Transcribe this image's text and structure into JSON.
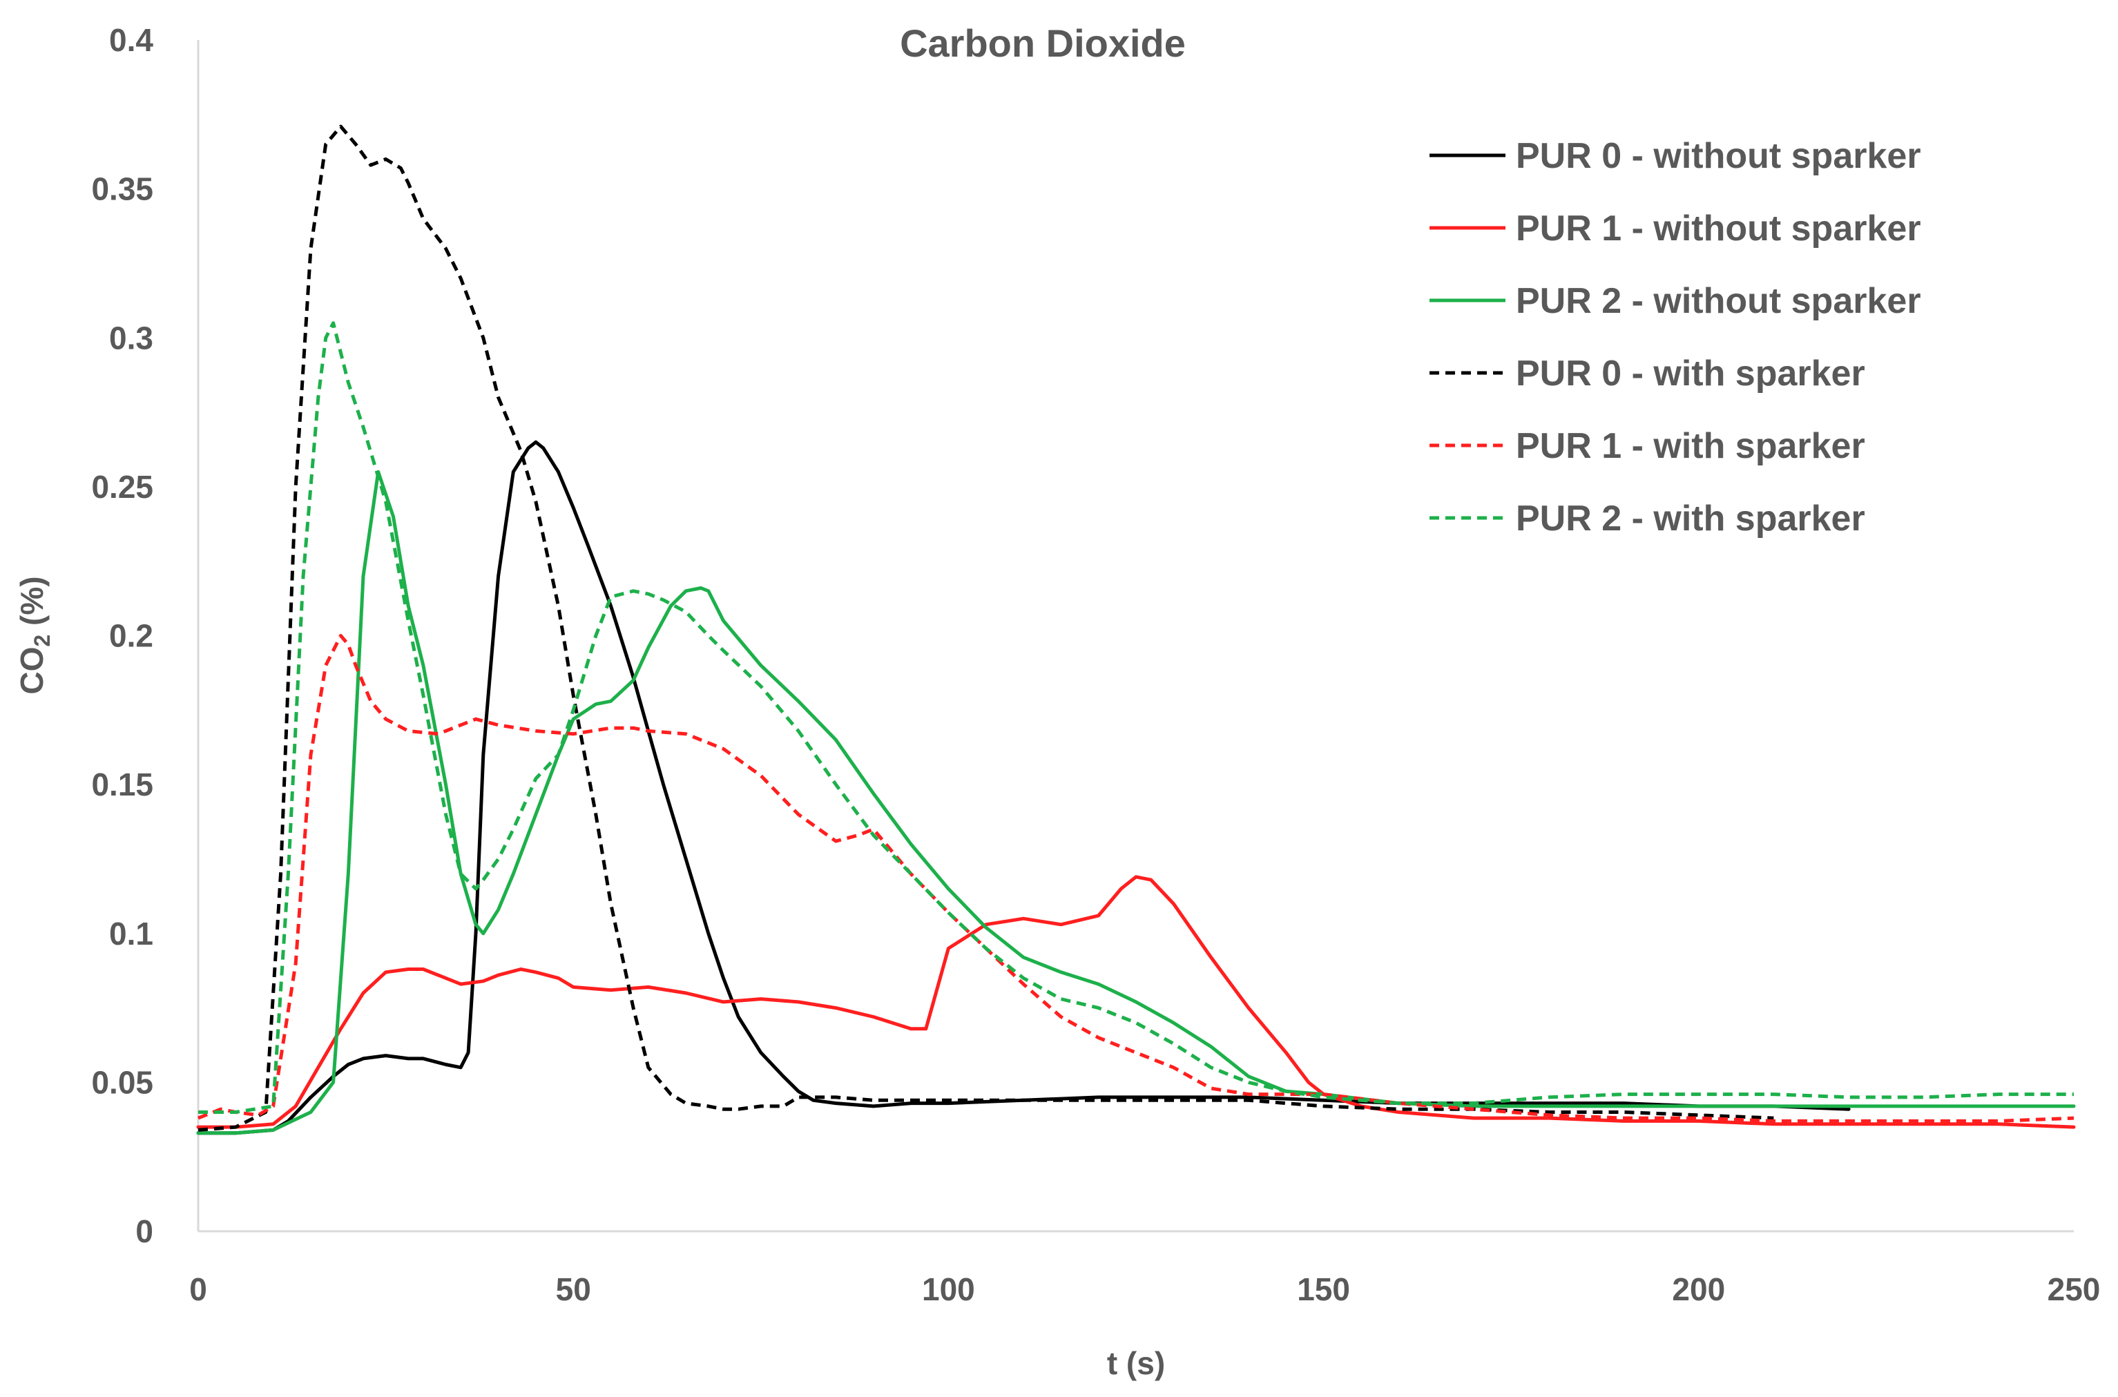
{
  "chart_data": {
    "type": "line",
    "title": "Carbon Dioxide",
    "xlabel": "t (s)",
    "ylabel": {
      "prefix": "CO",
      "subscript": "2",
      "suffix": " (%)"
    },
    "xlim": [
      0,
      250
    ],
    "ylim": [
      0,
      0.4
    ],
    "xticks": [
      0,
      50,
      100,
      150,
      200,
      250
    ],
    "xtick_labels": [
      "0",
      "50",
      "100",
      "150",
      "200",
      "250"
    ],
    "yticks": [
      0,
      0.05,
      0.1,
      0.15,
      0.2,
      0.25,
      0.3,
      0.35,
      0.4
    ],
    "ytick_labels": [
      "0",
      "0.05",
      "0.1",
      "0.15",
      "0.2",
      "0.25",
      "0.3",
      "0.35",
      "0.4"
    ],
    "grid": false,
    "legend_position": "top-right",
    "series": [
      {
        "name": "PUR 0 - without sparker",
        "color": "#000000",
        "dashed": false,
        "x": [
          0,
          5,
          10,
          12,
          15,
          18,
          20,
          22,
          25,
          28,
          30,
          33,
          35,
          36,
          37,
          38,
          40,
          42,
          44,
          45,
          46,
          48,
          50,
          52,
          55,
          58,
          60,
          62,
          65,
          68,
          70,
          72,
          75,
          78,
          80,
          82,
          85,
          90,
          95,
          100,
          110,
          120,
          130,
          140,
          150,
          160,
          170,
          180,
          190,
          200,
          210,
          220
        ],
        "y": [
          0.033,
          0.033,
          0.034,
          0.037,
          0.045,
          0.052,
          0.056,
          0.058,
          0.059,
          0.058,
          0.058,
          0.056,
          0.055,
          0.06,
          0.1,
          0.16,
          0.22,
          0.255,
          0.263,
          0.265,
          0.263,
          0.255,
          0.243,
          0.23,
          0.21,
          0.186,
          0.168,
          0.15,
          0.125,
          0.1,
          0.085,
          0.072,
          0.06,
          0.052,
          0.047,
          0.044,
          0.043,
          0.042,
          0.043,
          0.043,
          0.044,
          0.045,
          0.045,
          0.045,
          0.044,
          0.043,
          0.043,
          0.043,
          0.043,
          0.042,
          0.042,
          0.041
        ]
      },
      {
        "name": "PUR 1 - without sparker",
        "color": "#FF1F1F",
        "dashed": false,
        "x": [
          0,
          5,
          10,
          13,
          16,
          19,
          22,
          25,
          28,
          30,
          33,
          35,
          38,
          40,
          43,
          45,
          48,
          50,
          55,
          60,
          65,
          70,
          75,
          80,
          85,
          90,
          95,
          97,
          100,
          105,
          110,
          115,
          120,
          123,
          125,
          127,
          130,
          135,
          140,
          145,
          148,
          150,
          155,
          160,
          170,
          180,
          190,
          200,
          210,
          220,
          230,
          240,
          250
        ],
        "y": [
          0.035,
          0.035,
          0.036,
          0.042,
          0.055,
          0.068,
          0.08,
          0.087,
          0.088,
          0.088,
          0.085,
          0.083,
          0.084,
          0.086,
          0.088,
          0.087,
          0.085,
          0.082,
          0.081,
          0.082,
          0.08,
          0.077,
          0.078,
          0.077,
          0.075,
          0.072,
          0.068,
          0.068,
          0.095,
          0.103,
          0.105,
          0.103,
          0.106,
          0.115,
          0.119,
          0.118,
          0.11,
          0.092,
          0.075,
          0.06,
          0.05,
          0.046,
          0.042,
          0.04,
          0.038,
          0.038,
          0.037,
          0.037,
          0.036,
          0.036,
          0.036,
          0.036,
          0.035
        ]
      },
      {
        "name": "PUR 2 - without sparker",
        "color": "#1DB04B",
        "dashed": false,
        "x": [
          0,
          5,
          10,
          15,
          18,
          20,
          22,
          24,
          26,
          28,
          30,
          33,
          35,
          37,
          38,
          40,
          42,
          45,
          48,
          50,
          53,
          55,
          58,
          60,
          63,
          65,
          67,
          68,
          70,
          75,
          80,
          85,
          90,
          95,
          100,
          105,
          110,
          115,
          120,
          125,
          130,
          135,
          140,
          145,
          150,
          160,
          170,
          180,
          190,
          200,
          210,
          220,
          230,
          240,
          250
        ],
        "y": [
          0.033,
          0.033,
          0.034,
          0.04,
          0.05,
          0.12,
          0.22,
          0.255,
          0.24,
          0.21,
          0.19,
          0.15,
          0.12,
          0.103,
          0.1,
          0.108,
          0.12,
          0.14,
          0.16,
          0.172,
          0.177,
          0.178,
          0.185,
          0.196,
          0.21,
          0.215,
          0.216,
          0.215,
          0.205,
          0.19,
          0.178,
          0.165,
          0.147,
          0.13,
          0.115,
          0.102,
          0.092,
          0.087,
          0.083,
          0.077,
          0.07,
          0.062,
          0.052,
          0.047,
          0.046,
          0.043,
          0.042,
          0.042,
          0.042,
          0.042,
          0.042,
          0.042,
          0.042,
          0.042,
          0.042
        ]
      },
      {
        "name": "PUR 0 - with sparker",
        "color": "#000000",
        "dashed": true,
        "x": [
          0,
          5,
          9,
          11,
          13,
          15,
          17,
          19,
          21,
          23,
          25,
          27,
          28,
          30,
          33,
          35,
          38,
          40,
          43,
          45,
          48,
          50,
          53,
          55,
          58,
          60,
          63,
          65,
          68,
          70,
          72,
          75,
          78,
          80,
          85,
          90,
          100,
          110,
          120,
          130,
          140,
          150,
          160,
          170,
          180,
          190,
          200,
          210
        ],
        "y": [
          0.034,
          0.035,
          0.04,
          0.12,
          0.25,
          0.33,
          0.365,
          0.371,
          0.365,
          0.358,
          0.36,
          0.357,
          0.352,
          0.34,
          0.33,
          0.32,
          0.3,
          0.28,
          0.262,
          0.245,
          0.21,
          0.18,
          0.14,
          0.11,
          0.075,
          0.055,
          0.046,
          0.043,
          0.042,
          0.041,
          0.041,
          0.042,
          0.042,
          0.045,
          0.045,
          0.044,
          0.044,
          0.044,
          0.044,
          0.044,
          0.044,
          0.042,
          0.041,
          0.041,
          0.04,
          0.04,
          0.039,
          0.038
        ]
      },
      {
        "name": "PUR 1 - with sparker",
        "color": "#FF1F1F",
        "dashed": true,
        "x": [
          0,
          3,
          5,
          8,
          10,
          13,
          15,
          17,
          19,
          20,
          21,
          23,
          25,
          28,
          32,
          35,
          37,
          40,
          45,
          50,
          55,
          58,
          60,
          65,
          70,
          75,
          80,
          85,
          88,
          90,
          95,
          100,
          105,
          110,
          115,
          120,
          125,
          130,
          135,
          140,
          145,
          150,
          160,
          170,
          180,
          190,
          200,
          210,
          220,
          230,
          240,
          250
        ],
        "y": [
          0.038,
          0.041,
          0.04,
          0.039,
          0.042,
          0.09,
          0.16,
          0.19,
          0.2,
          0.197,
          0.19,
          0.178,
          0.172,
          0.168,
          0.167,
          0.17,
          0.172,
          0.17,
          0.168,
          0.167,
          0.169,
          0.169,
          0.168,
          0.167,
          0.162,
          0.153,
          0.14,
          0.131,
          0.133,
          0.135,
          0.12,
          0.107,
          0.095,
          0.083,
          0.072,
          0.065,
          0.06,
          0.055,
          0.048,
          0.046,
          0.046,
          0.046,
          0.043,
          0.041,
          0.039,
          0.038,
          0.038,
          0.037,
          0.037,
          0.037,
          0.037,
          0.038
        ]
      },
      {
        "name": "PUR 2 - with sparker",
        "color": "#1DB04B",
        "dashed": true,
        "x": [
          0,
          5,
          10,
          12,
          14,
          16,
          17,
          18,
          20,
          22,
          25,
          28,
          30,
          33,
          35,
          37,
          38,
          40,
          42,
          45,
          48,
          50,
          53,
          55,
          58,
          60,
          62,
          65,
          68,
          70,
          75,
          80,
          85,
          90,
          95,
          100,
          105,
          110,
          115,
          120,
          125,
          130,
          135,
          140,
          145,
          150,
          160,
          170,
          180,
          190,
          200,
          210,
          220,
          230,
          240,
          250
        ],
        "y": [
          0.04,
          0.04,
          0.042,
          0.12,
          0.22,
          0.28,
          0.3,
          0.305,
          0.285,
          0.27,
          0.245,
          0.205,
          0.18,
          0.14,
          0.12,
          0.115,
          0.118,
          0.125,
          0.135,
          0.152,
          0.16,
          0.175,
          0.2,
          0.213,
          0.215,
          0.214,
          0.212,
          0.208,
          0.2,
          0.195,
          0.183,
          0.168,
          0.15,
          0.133,
          0.12,
          0.107,
          0.095,
          0.085,
          0.078,
          0.075,
          0.07,
          0.063,
          0.055,
          0.05,
          0.047,
          0.045,
          0.043,
          0.043,
          0.045,
          0.046,
          0.046,
          0.046,
          0.045,
          0.045,
          0.046,
          0.046
        ]
      }
    ]
  }
}
